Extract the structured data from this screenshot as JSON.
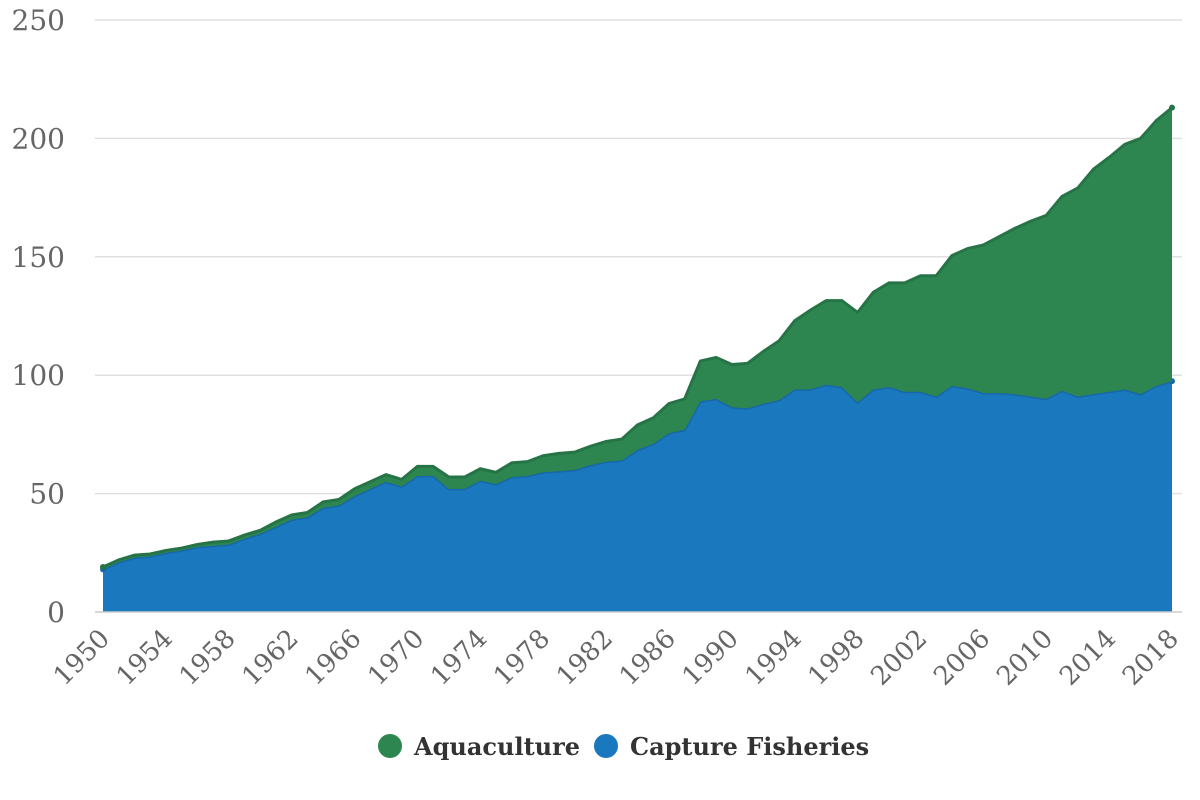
{
  "chart_data": {
    "type": "area",
    "stacked": true,
    "x": [
      1950,
      1951,
      1952,
      1953,
      1954,
      1955,
      1956,
      1957,
      1958,
      1959,
      1960,
      1961,
      1962,
      1963,
      1964,
      1965,
      1966,
      1967,
      1968,
      1969,
      1970,
      1971,
      1972,
      1973,
      1974,
      1975,
      1976,
      1977,
      1978,
      1979,
      1980,
      1981,
      1982,
      1983,
      1984,
      1985,
      1986,
      1987,
      1988,
      1989,
      1990,
      1991,
      1992,
      1993,
      1994,
      1995,
      1996,
      1997,
      1998,
      1999,
      2000,
      2001,
      2002,
      2003,
      2004,
      2005,
      2006,
      2007,
      2008,
      2009,
      2010,
      2011,
      2012,
      2013,
      2014,
      2015,
      2016,
      2017,
      2018
    ],
    "x_tick_labels": [
      "1950",
      "1954",
      "1958",
      "1962",
      "1966",
      "1970",
      "1974",
      "1978",
      "1982",
      "1986",
      "1990",
      "1994",
      "1998",
      "2002",
      "2006",
      "2010",
      "2014",
      "2018"
    ],
    "y_tick_labels": [
      "0",
      "50",
      "100",
      "150",
      "200",
      "250"
    ],
    "ylim": [
      0,
      250
    ],
    "grid": "horizontal",
    "legend_position": "bottom",
    "title": "",
    "xlabel": "",
    "ylabel": "",
    "series": [
      {
        "name": "Capture Fisheries",
        "color": "#1a78be",
        "values": [
          18,
          21,
          23,
          23.5,
          25,
          26,
          27.5,
          28,
          28.5,
          31,
          33,
          36,
          39,
          40,
          44,
          45,
          49,
          52,
          55,
          53,
          57.5,
          57.5,
          52,
          52,
          55.5,
          54,
          57,
          57.5,
          59,
          59.5,
          60,
          62,
          63.5,
          64,
          68.5,
          71,
          75.5,
          77,
          89,
          90,
          86.5,
          86,
          88,
          89.5,
          94,
          94,
          96,
          95,
          88.5,
          94,
          95,
          93,
          93,
          91,
          95.5,
          94.5,
          92.5,
          92.5,
          92,
          91,
          90,
          93.5,
          91,
          92,
          93,
          94,
          92,
          95.5,
          97.5
        ]
      },
      {
        "name": "Aquaculture",
        "color": "#2d8650",
        "values": [
          1,
          1,
          1,
          1,
          1,
          1,
          1,
          1.5,
          1.5,
          1.5,
          1.5,
          2,
          2,
          2,
          2.5,
          2.5,
          3,
          3,
          3,
          3,
          4,
          4,
          5,
          5,
          5,
          5,
          6,
          6,
          7,
          7.5,
          7.5,
          8,
          8.5,
          9,
          10.5,
          11,
          12.5,
          13,
          17,
          17.5,
          18,
          19,
          22,
          25,
          29,
          33.5,
          35.5,
          36.5,
          38,
          41,
          44,
          46,
          49,
          51,
          55,
          59,
          62.5,
          66,
          70,
          74,
          77.5,
          82,
          88,
          95,
          99,
          103.5,
          108,
          112,
          115.5
        ]
      }
    ]
  }
}
